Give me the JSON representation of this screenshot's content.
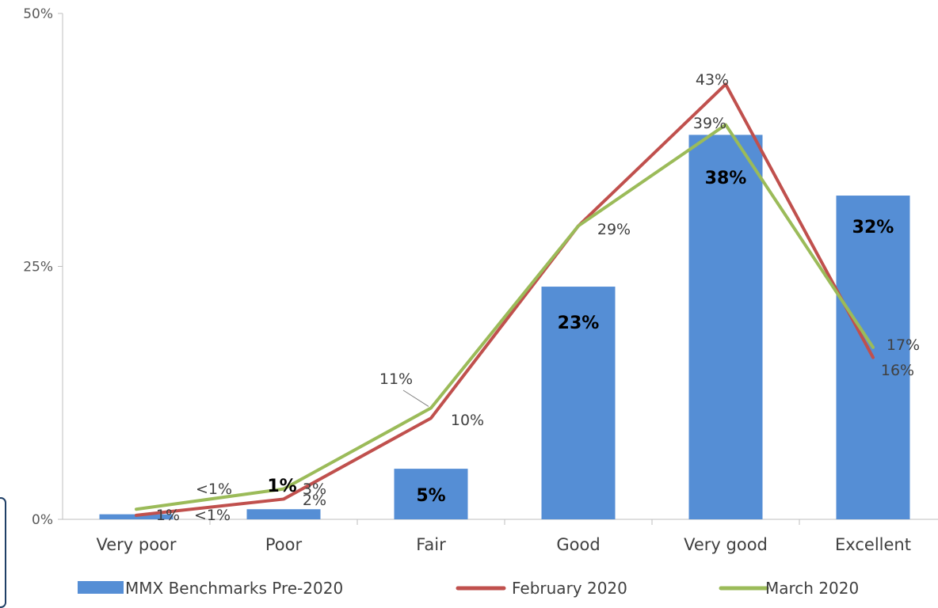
{
  "chart_data": {
    "type": "bar",
    "categories": [
      "Very poor",
      "Poor",
      "Fair",
      "Good",
      "Very good",
      "Excellent"
    ],
    "ylim": [
      0,
      50
    ],
    "yticks": [
      "0%",
      "25%",
      "50%"
    ],
    "grid": false,
    "legend_position": "bottom",
    "series": [
      {
        "name": "MMX Benchmarks Pre-2020",
        "kind": "bar",
        "color": "#558ED5",
        "values": [
          0.5,
          1,
          5,
          23,
          38,
          32
        ],
        "labels": [
          "",
          "1%",
          "5%",
          "23%",
          "38%",
          "32%"
        ]
      },
      {
        "name": "February 2020",
        "kind": "line",
        "color": "#C0504D",
        "values": [
          0.4,
          2,
          10,
          29,
          43,
          16
        ],
        "labels": [
          "<1%",
          "2%",
          "10%",
          "",
          "43%",
          "16%"
        ]
      },
      {
        "name": "March 2020",
        "kind": "line",
        "color": "#9BBB59",
        "values": [
          1,
          3,
          11,
          29,
          39,
          17
        ],
        "labels": [
          "1%",
          "3%",
          "11%",
          "29%",
          "39%",
          "17%"
        ]
      }
    ],
    "extra_labels": [
      "<1%"
    ]
  }
}
